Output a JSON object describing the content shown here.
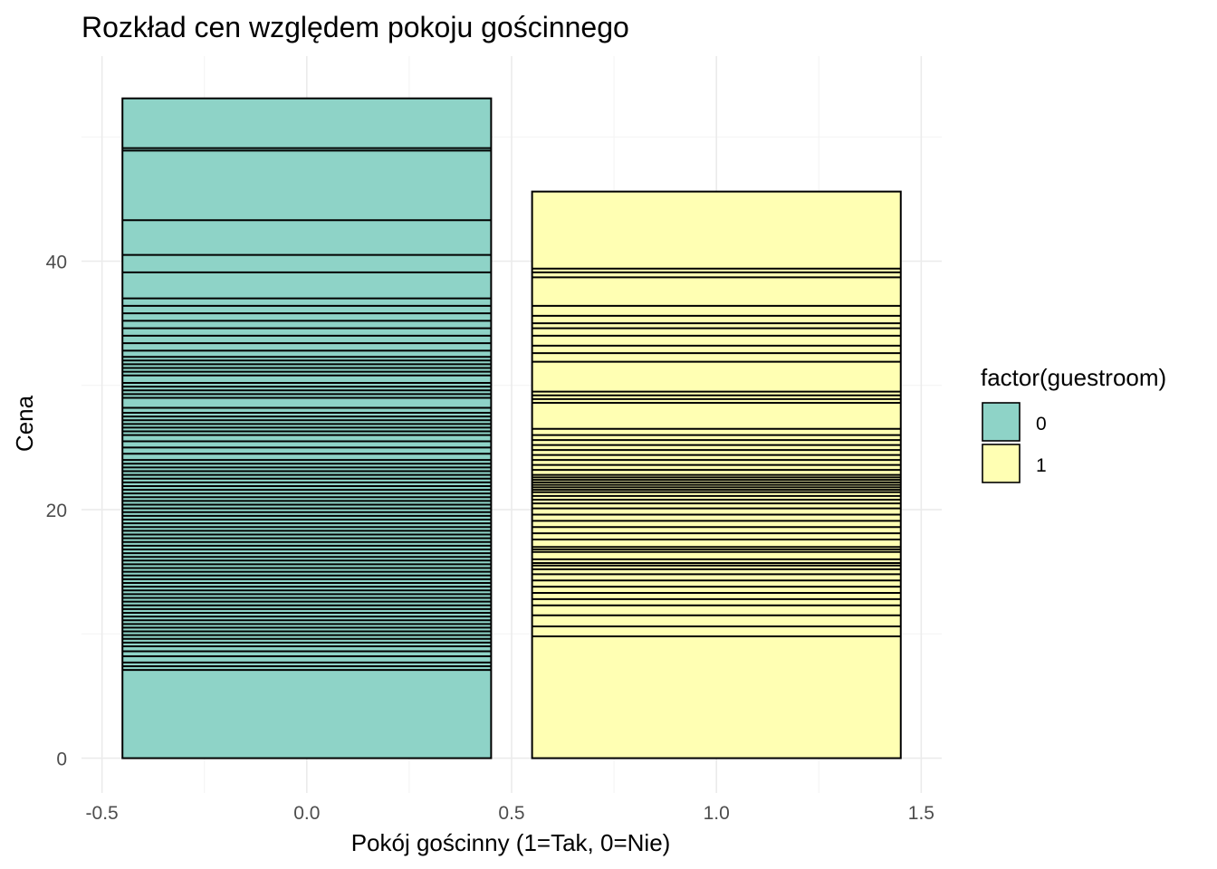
{
  "chart_data": {
    "type": "bar",
    "title": "Rozkład cen względem pokoju gościnnego",
    "xlabel": "Pokój gościnny (1=Tak, 0=Nie)",
    "ylabel": "Cena",
    "xlim": [
      -0.55,
      1.55
    ],
    "ylim": [
      -2.8,
      56.5
    ],
    "x_ticks": [
      -0.5,
      0.0,
      0.5,
      1.0,
      1.5
    ],
    "x_tick_labels": [
      "-0.5",
      "0.0",
      "0.5",
      "1.0",
      "1.5"
    ],
    "y_ticks": [
      0,
      20,
      40
    ],
    "y_tick_labels": [
      "0",
      "20",
      "40"
    ],
    "grid": true,
    "bar_width": 0.9,
    "stacked": true,
    "legend": {
      "title": "factor(guestroom)",
      "position": "right",
      "entries": [
        {
          "label": "0",
          "color": "#8ED3C7"
        },
        {
          "label": "1",
          "color": "#FFFFB3"
        }
      ]
    },
    "series": [
      {
        "name": "0",
        "x": 0,
        "color": "#8ED3C7",
        "total": 53.1,
        "segment_boundaries": [
          7.1,
          7.4,
          7.7,
          8.2,
          8.6,
          9.0,
          9.3,
          9.6,
          9.9,
          10.2,
          10.5,
          10.8,
          11.1,
          11.4,
          11.7,
          12.0,
          12.3,
          12.6,
          12.9,
          13.2,
          13.5,
          13.8,
          14.1,
          14.4,
          14.7,
          15.0,
          15.3,
          15.6,
          15.9,
          16.2,
          16.5,
          16.8,
          17.1,
          17.4,
          17.7,
          18.0,
          18.3,
          18.6,
          18.9,
          19.2,
          19.5,
          19.8,
          20.1,
          20.4,
          20.7,
          21.0,
          21.3,
          21.6,
          21.9,
          22.2,
          22.5,
          22.8,
          23.1,
          23.4,
          23.7,
          24.0,
          24.5,
          25.0,
          25.5,
          26.0,
          26.3,
          26.6,
          26.9,
          27.2,
          27.5,
          27.8,
          28.2,
          29.0,
          29.3,
          29.6,
          29.9,
          30.2,
          30.8,
          31.1,
          31.4,
          31.7,
          32.0,
          32.3,
          32.8,
          33.4,
          34.0,
          34.6,
          35.2,
          35.8,
          36.4,
          37.0,
          39.1,
          40.5,
          43.3,
          48.9,
          49.1
        ]
      },
      {
        "name": "1",
        "x": 1,
        "color": "#FFFFB3",
        "total": 45.6,
        "segment_boundaries": [
          9.8,
          10.6,
          11.5,
          12.3,
          12.8,
          13.3,
          13.8,
          14.3,
          14.8,
          15.2,
          15.5,
          15.7,
          16.0,
          16.6,
          16.8,
          17.0,
          17.6,
          18.1,
          18.6,
          19.1,
          19.6,
          20.1,
          20.5,
          20.8,
          21.1,
          21.4,
          21.6,
          21.8,
          22.0,
          22.2,
          22.4,
          22.6,
          22.8,
          23.2,
          23.6,
          24.0,
          24.4,
          24.8,
          25.2,
          25.6,
          26.0,
          26.5,
          28.6,
          28.9,
          29.2,
          29.5,
          31.9,
          32.6,
          33.2,
          34.0,
          34.6,
          35.0,
          35.6,
          36.4,
          38.7,
          39.1,
          39.4
        ]
      }
    ]
  }
}
